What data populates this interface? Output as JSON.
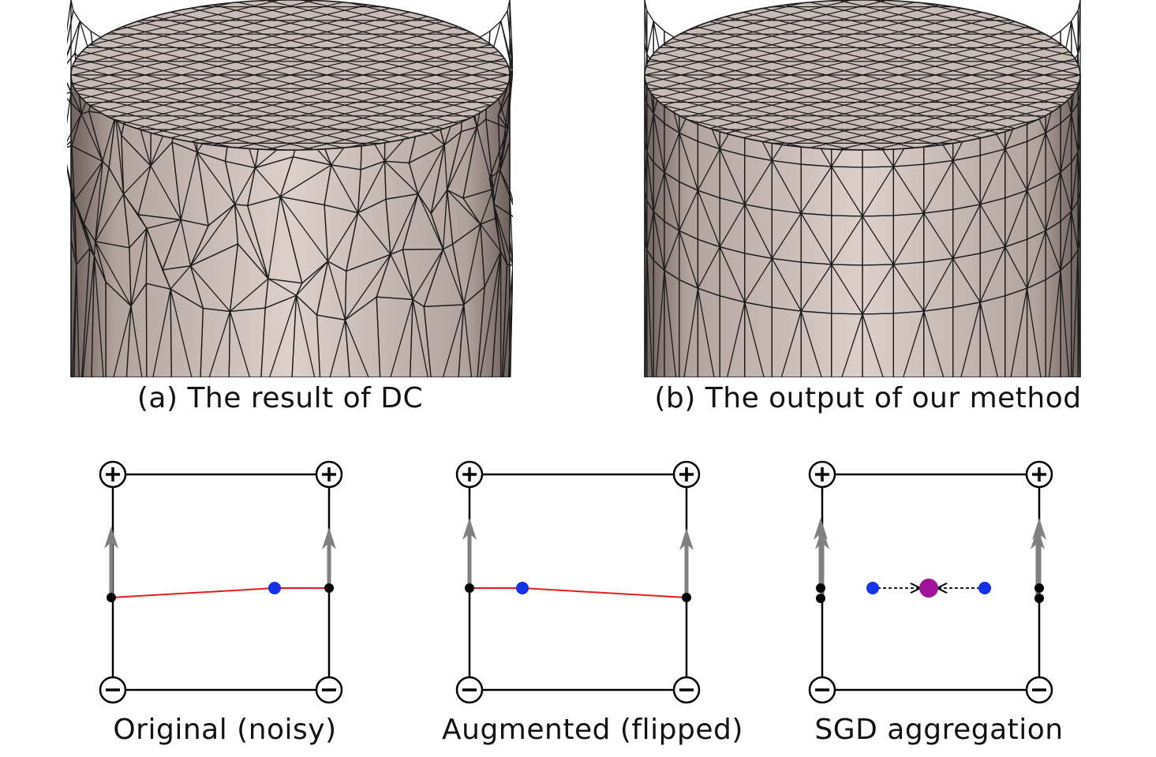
{
  "figure": {
    "top_captions": {
      "left": "(a) The result of DC",
      "right": "(b) The output of our method"
    },
    "bottom_captions": {
      "left": "Original (noisy)",
      "middle": "Augmented (flipped)",
      "right": "SGD aggregation"
    },
    "corner_signs": {
      "positive": "+",
      "negative": "−"
    },
    "colors": {
      "mesh_fill_top": "#c9bbb5",
      "mesh_fill_side": "#d4c6c0",
      "mesh_shadow": "#8e7f79",
      "mesh_edge": "#1a1a1a",
      "surface_line": "#e0201c",
      "vertex_point": "#1433e6",
      "aggregated_point": "#a0139a",
      "normal_arrow": "#808080",
      "cell_border": "#000000"
    },
    "icons": [
      "plus-circle-icon",
      "minus-circle-icon",
      "normal-arrow-icon"
    ]
  }
}
